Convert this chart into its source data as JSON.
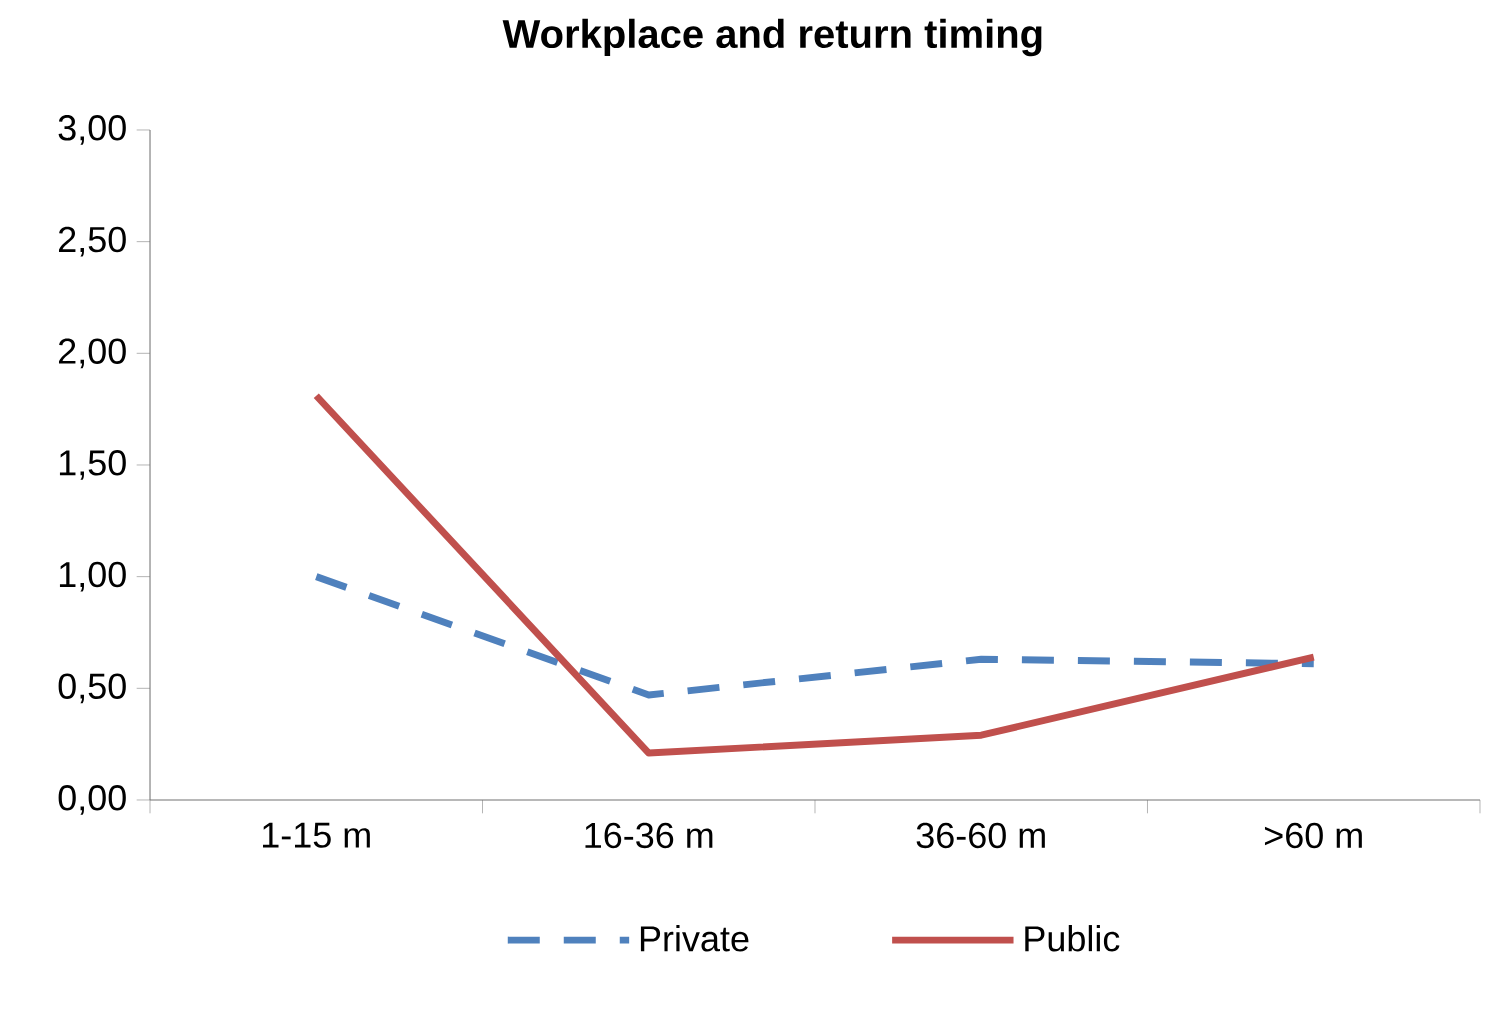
{
  "chart_data": {
    "type": "line",
    "title": "Workplace and return timing",
    "categories": [
      "1-15 m",
      "16-36 m",
      "36-60 m",
      ">60 m"
    ],
    "series": [
      {
        "name": "Private",
        "color": "#4f81bd",
        "line_style": "dashed",
        "values": [
          1.0,
          0.47,
          0.63,
          0.61
        ]
      },
      {
        "name": "Public",
        "color": "#c0504d",
        "line_style": "solid",
        "values": [
          1.81,
          0.21,
          0.29,
          0.64
        ]
      }
    ],
    "ylim": [
      0,
      3
    ],
    "yticks": [
      {
        "value": 0,
        "label": "0,00"
      },
      {
        "value": 0.5,
        "label": "0,50"
      },
      {
        "value": 1,
        "label": "1,00"
      },
      {
        "value": 1.5,
        "label": "1,50"
      },
      {
        "value": 2,
        "label": "2,00"
      },
      {
        "value": 2.5,
        "label": "2,50"
      },
      {
        "value": 3,
        "label": "3,00"
      }
    ],
    "grid": false,
    "legend": "bottom",
    "marker": "none"
  }
}
